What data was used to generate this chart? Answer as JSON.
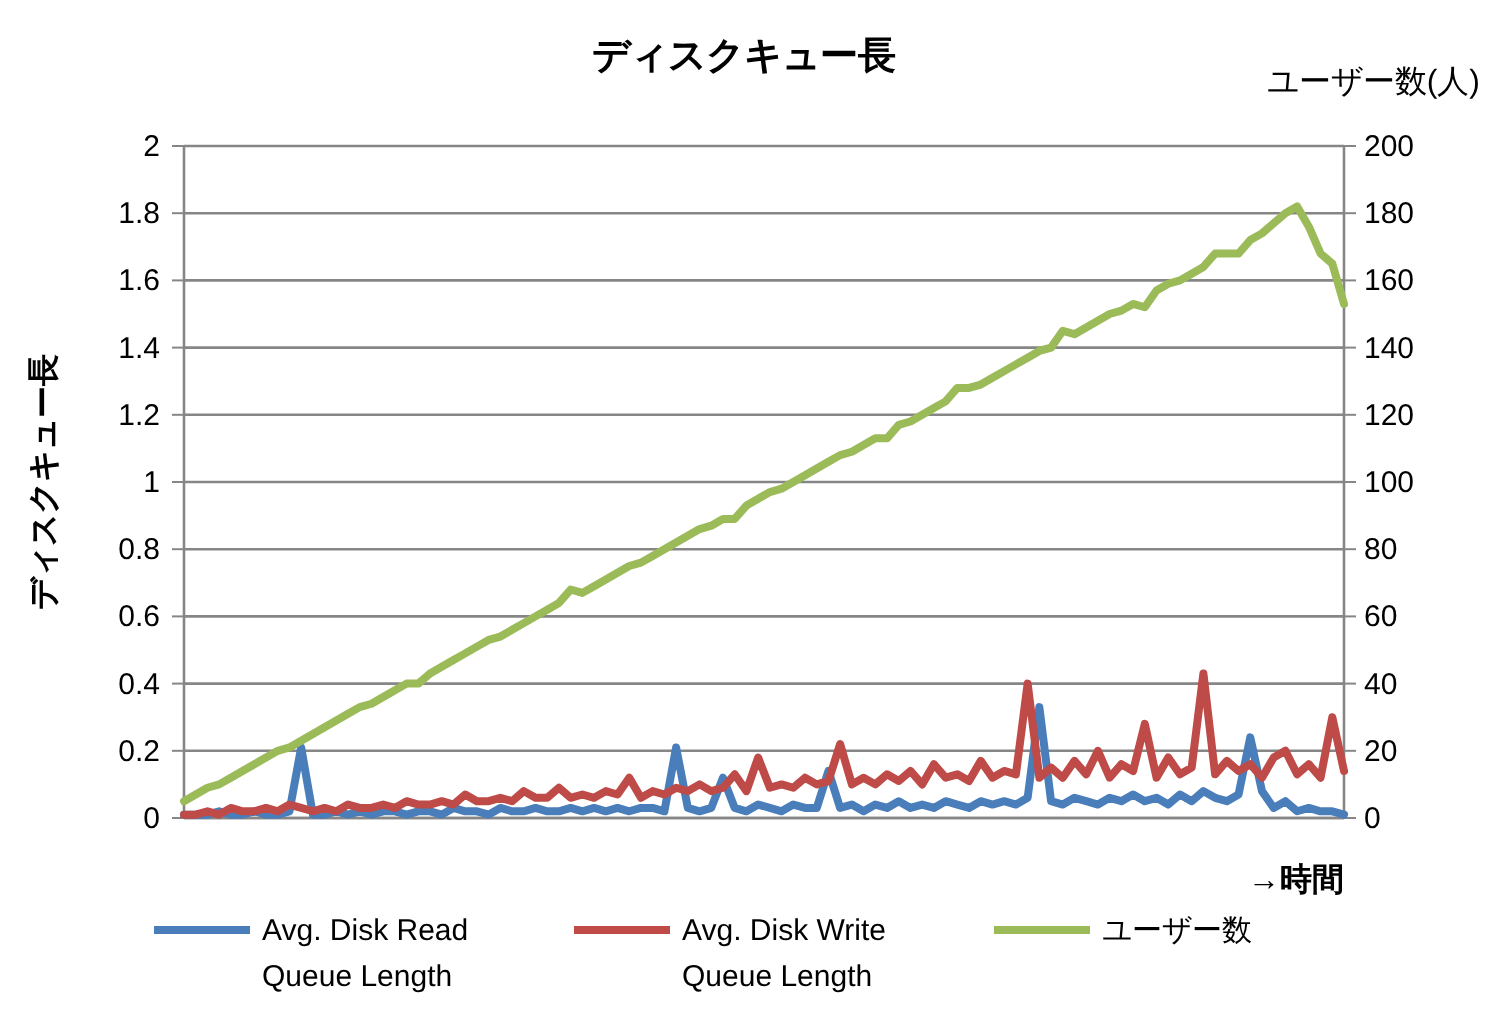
{
  "chart_data": {
    "type": "line",
    "title": "ディスクキュー長",
    "xlabel": "→時間",
    "ylabel": "ディスクキュー長",
    "y2label": "ユーザー数(人)",
    "categories": [
      null,
      null,
      null,
      null,
      null,
      null,
      null,
      null,
      null,
      null,
      null,
      null,
      null,
      null,
      null,
      null,
      null,
      null,
      null,
      null,
      null,
      null,
      null,
      null,
      null,
      null,
      null,
      null,
      null,
      null,
      null,
      null,
      null,
      null,
      null,
      null,
      null,
      null,
      null,
      null,
      null,
      null,
      null,
      null,
      null,
      null,
      null,
      null,
      null,
      null,
      null,
      null,
      null,
      null,
      null,
      null,
      null,
      null,
      null,
      null,
      null,
      null,
      null,
      null,
      null,
      null,
      null,
      null,
      null,
      null,
      null,
      null,
      null,
      null,
      null,
      null,
      null,
      null,
      null,
      null,
      null,
      null,
      null,
      null,
      null,
      null,
      null,
      null,
      null,
      null,
      null,
      null,
      null,
      null,
      null,
      null,
      null,
      null,
      null,
      null
    ],
    "ylim": [
      0,
      2
    ],
    "yticks": [
      0,
      0.2,
      0.4,
      0.6,
      0.8,
      1,
      1.2,
      1.4,
      1.6,
      1.8,
      2
    ],
    "y2lim": [
      0,
      200
    ],
    "y2ticks": [
      0,
      20,
      40,
      60,
      80,
      100,
      120,
      140,
      160,
      180,
      200
    ],
    "grid": "y",
    "legend": "bottom",
    "line_style": "solid",
    "marker": "none",
    "series": [
      {
        "name": "Avg. Disk Read Queue Length",
        "color": "#4a7ebb",
        "values": [
          0.01,
          0.01,
          0.01,
          0.02,
          0.01,
          0.01,
          0.02,
          0.01,
          0.01,
          0.02,
          0.21,
          0.01,
          0.01,
          0.02,
          0.01,
          0.02,
          0.01,
          0.02,
          0.02,
          0.01,
          0.02,
          0.02,
          0.01,
          0.03,
          0.02,
          0.02,
          0.01,
          0.03,
          0.02,
          0.02,
          0.03,
          0.02,
          0.02,
          0.03,
          0.02,
          0.03,
          0.02,
          0.03,
          0.02,
          0.03,
          0.03,
          0.02,
          0.21,
          0.03,
          0.02,
          0.03,
          0.12,
          0.03,
          0.02,
          0.04,
          0.03,
          0.02,
          0.04,
          0.03,
          0.03,
          0.14,
          0.03,
          0.04,
          0.02,
          0.04,
          0.03,
          0.05,
          0.03,
          0.04,
          0.03,
          0.05,
          0.04,
          0.03,
          0.05,
          0.04,
          0.05,
          0.04,
          0.06,
          0.33,
          0.05,
          0.04,
          0.06,
          0.05,
          0.04,
          0.06,
          0.05,
          0.07,
          0.05,
          0.06,
          0.04,
          0.07,
          0.05,
          0.08,
          0.06,
          0.05,
          0.07,
          0.24,
          0.08,
          0.03,
          0.05,
          0.02,
          0.03,
          0.02,
          0.02,
          0.01
        ]
      },
      {
        "name": "Avg. Disk Write Queue Length",
        "color": "#be4b48",
        "values": [
          0.01,
          0.01,
          0.02,
          0.01,
          0.03,
          0.02,
          0.02,
          0.03,
          0.02,
          0.04,
          0.03,
          0.02,
          0.03,
          0.02,
          0.04,
          0.03,
          0.03,
          0.04,
          0.03,
          0.05,
          0.04,
          0.04,
          0.05,
          0.04,
          0.07,
          0.05,
          0.05,
          0.06,
          0.05,
          0.08,
          0.06,
          0.06,
          0.09,
          0.06,
          0.07,
          0.06,
          0.08,
          0.07,
          0.12,
          0.06,
          0.08,
          0.07,
          0.09,
          0.08,
          0.1,
          0.08,
          0.09,
          0.13,
          0.08,
          0.18,
          0.09,
          0.1,
          0.09,
          0.12,
          0.1,
          0.11,
          0.22,
          0.1,
          0.12,
          0.1,
          0.13,
          0.11,
          0.14,
          0.1,
          0.16,
          0.12,
          0.13,
          0.11,
          0.17,
          0.12,
          0.14,
          0.13,
          0.4,
          0.12,
          0.15,
          0.12,
          0.17,
          0.13,
          0.2,
          0.12,
          0.16,
          0.14,
          0.28,
          0.12,
          0.18,
          0.13,
          0.15,
          0.43,
          0.13,
          0.17,
          0.14,
          0.16,
          0.12,
          0.18,
          0.2,
          0.13,
          0.16,
          0.12,
          0.3,
          0.14
        ]
      },
      {
        "name": "ユーザー数",
        "color": "#9bbb59",
        "axis": "y2",
        "values": [
          5,
          7,
          9,
          10,
          12,
          14,
          16,
          18,
          20,
          21,
          23,
          25,
          27,
          29,
          31,
          33,
          34,
          36,
          38,
          40,
          40,
          43,
          45,
          47,
          49,
          51,
          53,
          54,
          56,
          58,
          60,
          62,
          64,
          68,
          67,
          69,
          71,
          73,
          75,
          76,
          78,
          80,
          82,
          84,
          86,
          87,
          89,
          89,
          93,
          95,
          97,
          98,
          100,
          102,
          104,
          106,
          108,
          109,
          111,
          113,
          113,
          117,
          118,
          120,
          122,
          124,
          128,
          128,
          129,
          131,
          133,
          135,
          137,
          139,
          140,
          145,
          144,
          146,
          148,
          150,
          151,
          153,
          152,
          157,
          159,
          160,
          162,
          164,
          168,
          168,
          168,
          172,
          174,
          177,
          180,
          182,
          176,
          168,
          165,
          153
        ]
      }
    ]
  }
}
